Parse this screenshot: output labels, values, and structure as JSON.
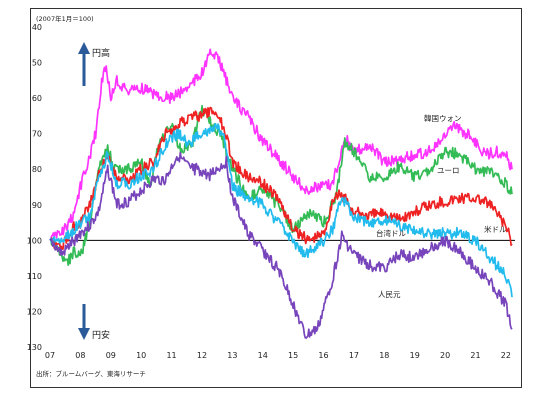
{
  "chart_data": {
    "type": "line",
    "index_note": "(2007年1月＝100)",
    "source": "出所：ブルームバーグ、東海リサーチ",
    "arrow_up_label": "円高",
    "arrow_down_label": "円安",
    "ylim": [
      40,
      130
    ],
    "y_inverted": true,
    "y_ticks": [
      "40",
      "50",
      "60",
      "70",
      "80",
      "90",
      "100",
      "110",
      "120",
      "130"
    ],
    "x_ticks": [
      "07",
      "08",
      "09",
      "10",
      "11",
      "12",
      "13",
      "14",
      "15",
      "16",
      "17",
      "18",
      "19",
      "20",
      "21",
      "22"
    ],
    "baseline": 100,
    "series": [
      {
        "name": "韓国ウォン",
        "color": "#ff33ff",
        "points": [
          [
            2007.0,
            100
          ],
          [
            2007.3,
            98
          ],
          [
            2007.6,
            96
          ],
          [
            2007.8,
            92
          ],
          [
            2008.0,
            85
          ],
          [
            2008.25,
            78
          ],
          [
            2008.5,
            70
          ],
          [
            2008.7,
            55
          ],
          [
            2008.85,
            51
          ],
          [
            2009.0,
            60
          ],
          [
            2009.2,
            55
          ],
          [
            2009.5,
            58
          ],
          [
            2010.0,
            57
          ],
          [
            2010.5,
            59
          ],
          [
            2011.0,
            60
          ],
          [
            2011.5,
            57
          ],
          [
            2012.0,
            53
          ],
          [
            2012.3,
            47
          ],
          [
            2012.6,
            50
          ],
          [
            2013.0,
            60
          ],
          [
            2013.5,
            65
          ],
          [
            2014.0,
            72
          ],
          [
            2014.5,
            77
          ],
          [
            2015.0,
            82
          ],
          [
            2015.4,
            86
          ],
          [
            2015.8,
            85
          ],
          [
            2016.3,
            84
          ],
          [
            2016.7,
            71
          ],
          [
            2017.0,
            75
          ],
          [
            2017.5,
            73
          ],
          [
            2018.0,
            78
          ],
          [
            2018.5,
            77
          ],
          [
            2019.0,
            76
          ],
          [
            2019.5,
            75
          ],
          [
            2020.0,
            71
          ],
          [
            2020.3,
            68
          ],
          [
            2020.7,
            70
          ],
          [
            2021.0,
            72
          ],
          [
            2021.3,
            76
          ],
          [
            2021.7,
            75
          ],
          [
            2022.0,
            76
          ],
          [
            2022.2,
            80
          ]
        ]
      },
      {
        "name": "ユーロ",
        "color": "#33bb55",
        "points": [
          [
            2007.0,
            100
          ],
          [
            2007.4,
            104
          ],
          [
            2007.6,
            106
          ],
          [
            2007.8,
            103
          ],
          [
            2008.0,
            105
          ],
          [
            2008.3,
            95
          ],
          [
            2008.6,
            80
          ],
          [
            2008.9,
            74
          ],
          [
            2009.1,
            80
          ],
          [
            2009.5,
            80
          ],
          [
            2010.0,
            78
          ],
          [
            2010.3,
            85
          ],
          [
            2010.6,
            72
          ],
          [
            2011.0,
            68
          ],
          [
            2011.3,
            75
          ],
          [
            2011.7,
            72
          ],
          [
            2012.0,
            63
          ],
          [
            2012.3,
            67
          ],
          [
            2012.6,
            70
          ],
          [
            2013.0,
            80
          ],
          [
            2013.5,
            88
          ],
          [
            2014.0,
            86
          ],
          [
            2014.5,
            90
          ],
          [
            2015.0,
            97
          ],
          [
            2015.5,
            92
          ],
          [
            2016.0,
            95
          ],
          [
            2016.4,
            88
          ],
          [
            2016.7,
            72
          ],
          [
            2017.0,
            75
          ],
          [
            2017.5,
            82
          ],
          [
            2018.0,
            82
          ],
          [
            2018.5,
            79
          ],
          [
            2019.0,
            82
          ],
          [
            2019.5,
            80
          ],
          [
            2020.0,
            75
          ],
          [
            2020.5,
            76
          ],
          [
            2021.0,
            80
          ],
          [
            2021.5,
            81
          ],
          [
            2022.0,
            84
          ],
          [
            2022.2,
            87
          ]
        ]
      },
      {
        "name": "米ドル",
        "color": "#ee2222",
        "points": [
          [
            2007.0,
            100
          ],
          [
            2007.4,
            102
          ],
          [
            2007.7,
            97
          ],
          [
            2008.0,
            95
          ],
          [
            2008.3,
            90
          ],
          [
            2008.6,
            82
          ],
          [
            2008.9,
            76
          ],
          [
            2009.2,
            82
          ],
          [
            2009.6,
            83
          ],
          [
            2010.0,
            80
          ],
          [
            2010.4,
            78
          ],
          [
            2010.8,
            70
          ],
          [
            2011.2,
            68
          ],
          [
            2011.6,
            65
          ],
          [
            2011.9,
            65
          ],
          [
            2012.2,
            64
          ],
          [
            2012.5,
            64
          ],
          [
            2012.8,
            70
          ],
          [
            2013.0,
            78
          ],
          [
            2013.5,
            82
          ],
          [
            2014.0,
            84
          ],
          [
            2014.5,
            88
          ],
          [
            2015.0,
            97
          ],
          [
            2015.5,
            100
          ],
          [
            2016.0,
            98
          ],
          [
            2016.4,
            87
          ],
          [
            2016.7,
            88
          ],
          [
            2017.0,
            92
          ],
          [
            2017.5,
            93
          ],
          [
            2018.0,
            92
          ],
          [
            2018.5,
            94
          ],
          [
            2019.0,
            92
          ],
          [
            2019.5,
            90
          ],
          [
            2020.0,
            89
          ],
          [
            2020.5,
            88
          ],
          [
            2021.0,
            88
          ],
          [
            2021.5,
            90
          ],
          [
            2022.0,
            96
          ],
          [
            2022.2,
            101
          ]
        ]
      },
      {
        "name": "台湾ドル",
        "color": "#22bbee",
        "points": [
          [
            2007.0,
            100
          ],
          [
            2007.4,
            100
          ],
          [
            2007.7,
            98
          ],
          [
            2008.0,
            95
          ],
          [
            2008.3,
            93
          ],
          [
            2008.6,
            82
          ],
          [
            2008.9,
            76
          ],
          [
            2009.2,
            84
          ],
          [
            2009.6,
            84
          ],
          [
            2010.0,
            82
          ],
          [
            2010.4,
            80
          ],
          [
            2010.8,
            73
          ],
          [
            2011.2,
            70
          ],
          [
            2011.6,
            73
          ],
          [
            2011.9,
            70
          ],
          [
            2012.2,
            70
          ],
          [
            2012.5,
            68
          ],
          [
            2012.8,
            73
          ],
          [
            2013.0,
            85
          ],
          [
            2013.5,
            88
          ],
          [
            2014.0,
            90
          ],
          [
            2014.5,
            95
          ],
          [
            2015.0,
            100
          ],
          [
            2015.4,
            104
          ],
          [
            2015.8,
            102
          ],
          [
            2016.3,
            97
          ],
          [
            2016.6,
            88
          ],
          [
            2017.0,
            93
          ],
          [
            2017.5,
            95
          ],
          [
            2018.0,
            94
          ],
          [
            2018.5,
            96
          ],
          [
            2019.0,
            97
          ],
          [
            2019.5,
            98
          ],
          [
            2020.0,
            98
          ],
          [
            2020.5,
            98
          ],
          [
            2021.0,
            100
          ],
          [
            2021.5,
            105
          ],
          [
            2022.0,
            110
          ],
          [
            2022.2,
            116
          ]
        ]
      },
      {
        "name": "人民元",
        "color": "#7744bb",
        "points": [
          [
            2007.0,
            100
          ],
          [
            2007.4,
            104
          ],
          [
            2007.7,
            101
          ],
          [
            2008.0,
            98
          ],
          [
            2008.3,
            96
          ],
          [
            2008.6,
            92
          ],
          [
            2008.9,
            80
          ],
          [
            2009.2,
            90
          ],
          [
            2009.6,
            89
          ],
          [
            2010.0,
            86
          ],
          [
            2010.4,
            83
          ],
          [
            2010.8,
            83
          ],
          [
            2011.2,
            76
          ],
          [
            2011.6,
            80
          ],
          [
            2011.9,
            80
          ],
          [
            2012.2,
            82
          ],
          [
            2012.5,
            80
          ],
          [
            2012.8,
            78
          ],
          [
            2013.0,
            88
          ],
          [
            2013.5,
            98
          ],
          [
            2014.0,
            103
          ],
          [
            2014.5,
            108
          ],
          [
            2015.0,
            118
          ],
          [
            2015.4,
            127
          ],
          [
            2015.8,
            125
          ],
          [
            2016.3,
            111
          ],
          [
            2016.6,
            99
          ],
          [
            2017.0,
            104
          ],
          [
            2017.5,
            107
          ],
          [
            2018.0,
            108
          ],
          [
            2018.5,
            104
          ],
          [
            2019.0,
            105
          ],
          [
            2019.5,
            102
          ],
          [
            2020.0,
            100
          ],
          [
            2020.5,
            103
          ],
          [
            2021.0,
            108
          ],
          [
            2021.5,
            112
          ],
          [
            2022.0,
            118
          ],
          [
            2022.2,
            125
          ]
        ]
      }
    ],
    "series_labels": [
      "韓国ウォン",
      "ユーロ",
      "米ドル",
      "台湾ドル",
      "人民元"
    ],
    "grid": false,
    "legend": "inline labels"
  }
}
